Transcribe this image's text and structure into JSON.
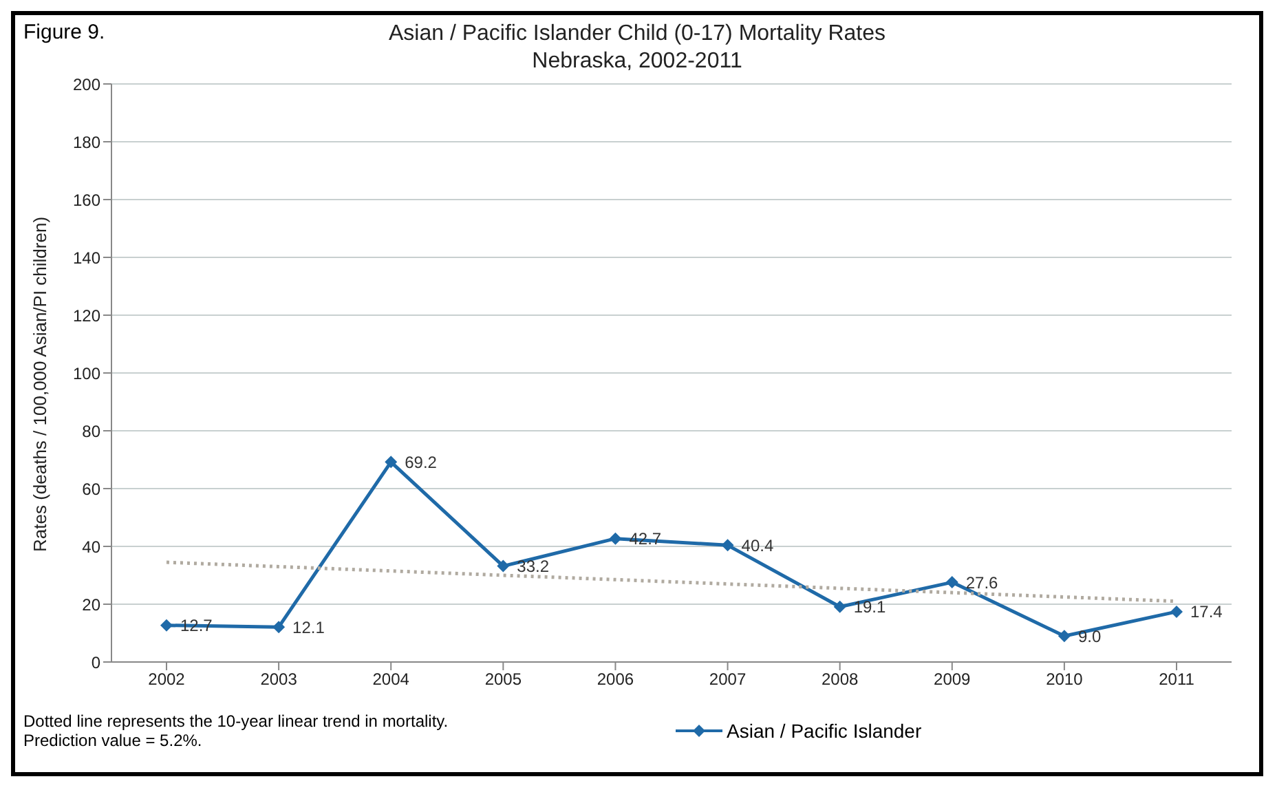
{
  "chart_data": {
    "type": "line",
    "title": "Asian / Pacific Islander Child (0-17) Mortality Rates",
    "subtitle": "Nebraska, 2002-2011",
    "ylabel": "Rates (deaths / 100,000 Asian/PI children)",
    "categories": [
      "2002",
      "2003",
      "2004",
      "2005",
      "2006",
      "2007",
      "2008",
      "2009",
      "2010",
      "2011"
    ],
    "series": [
      {
        "name": "Asian / Pacific Islander",
        "color": "#1f6aa8",
        "values": [
          12.7,
          12.1,
          69.2,
          33.2,
          42.7,
          40.4,
          19.1,
          27.6,
          9.0,
          17.4
        ],
        "marker": "diamond",
        "value_labels": [
          "12.7",
          "12.1",
          "69.2",
          "33.2",
          "42.7",
          "40.4",
          "19.1",
          "27.6",
          "9.0",
          "17.4"
        ]
      },
      {
        "type": "line",
        "color": "#b0aaa0",
        "values": [
          34.5,
          null,
          null,
          null,
          null,
          null,
          null,
          null,
          null,
          21
        ],
        "marker": "none",
        "line_style": "dotted"
      }
    ],
    "ylim": [
      0,
      200
    ],
    "yticks": [
      0,
      20,
      40,
      60,
      80,
      100,
      120,
      140,
      160,
      180,
      200
    ],
    "grid": "y",
    "legend": "bottom",
    "annotations": [
      "Figure 9.",
      "Dotted line represents the 10-year linear trend in mortality.  Prediction value = 5.2%."
    ]
  }
}
